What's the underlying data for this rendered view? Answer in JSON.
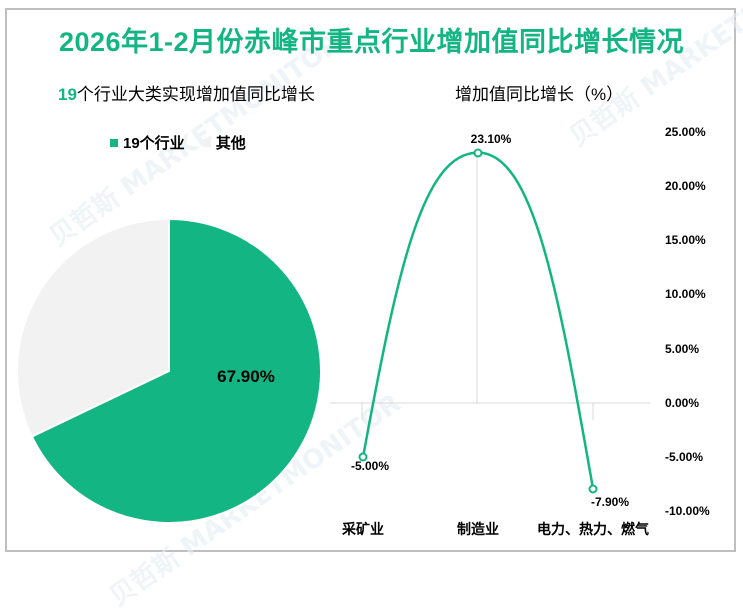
{
  "title": "2026年1-2月份赤峰市重点行业增加值同比增长情况",
  "colors": {
    "accent": "#13b582",
    "other": "#f2f2f2",
    "grid": "#d9d9d9",
    "frame": "#bfbfbf"
  },
  "left_panel": {
    "subtitle_highlight": "19",
    "subtitle_rest": "个行业大类实现增加值同比增长",
    "legend": [
      {
        "label": "19个行业",
        "color": "#13b582"
      },
      {
        "label": "其他",
        "color": "#f2f2f2"
      }
    ],
    "pie_label": "67.90%"
  },
  "right_panel": {
    "subtitle": "增加值同比增长（%）",
    "y_ticks": [
      "25.00%",
      "20.00%",
      "15.00%",
      "10.00%",
      "5.00%",
      "0.00%",
      "-5.00%",
      "-10.00%"
    ],
    "x_labels": [
      "采矿业",
      "制造业",
      "电力、热力、燃气"
    ],
    "data_labels": [
      "-5.00%",
      "23.10%",
      "-7.90%"
    ]
  },
  "watermark": "贝哲斯 MARKETMONITOR",
  "chart_data": [
    {
      "type": "pie",
      "title": "19个行业大类实现增加值同比增长",
      "categories": [
        "19个行业",
        "其他"
      ],
      "values": [
        67.9,
        32.1
      ],
      "data_labels": [
        "67.90%"
      ],
      "legend_position": "top"
    },
    {
      "type": "line",
      "title": "增加值同比增长（%）",
      "categories": [
        "采矿业",
        "制造业",
        "电力、热力、燃气"
      ],
      "series": [
        {
          "name": "增加值同比增长",
          "values": [
            -5.0,
            23.1,
            -7.9
          ]
        }
      ],
      "xlabel": "",
      "ylabel": "",
      "ylim": [
        -10,
        25
      ],
      "y_tick_step": 5,
      "y_axis_position": "right",
      "grid": "vertical lines at categories, zero line",
      "smooth": true
    }
  ]
}
